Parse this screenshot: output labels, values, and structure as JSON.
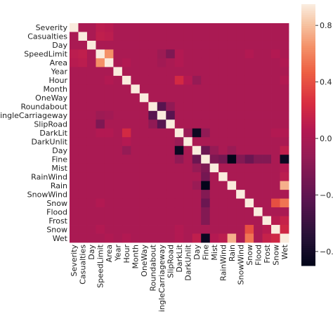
{
  "chart_data": {
    "type": "heatmap",
    "title": "",
    "xlabel": "",
    "ylabel": "",
    "labels": [
      "Severity",
      "Casualties",
      "Day",
      "SpeedLimit",
      "Area",
      "Year",
      "Hour",
      "Month",
      "OneWay",
      "Roundabout",
      "SingleCarriageway",
      "SlipRoad",
      "DarkLit",
      "DarkUnlit",
      "Day",
      "Fine",
      "Mist",
      "RainWind",
      "Rain",
      "SnowWind",
      "Snow",
      "Flood",
      "Frost",
      "Snow",
      "Wet"
    ],
    "colorbar": {
      "min": -0.9,
      "max": 0.95,
      "ticks": [
        -0.8,
        -0.4,
        0.0,
        0.4,
        0.8
      ],
      "tick_labels": [
        "−0.8",
        "−0.4",
        "0.0",
        "0.4",
        "0.8"
      ]
    },
    "base_value": 0.0,
    "diagonal_value": 1.0,
    "highlights": [
      [
        0,
        3,
        0.1
      ],
      [
        0,
        4,
        0.08
      ],
      [
        1,
        3,
        0.12
      ],
      [
        1,
        4,
        0.1
      ],
      [
        3,
        4,
        0.65
      ],
      [
        3,
        11,
        -0.25
      ],
      [
        3,
        10,
        -0.08
      ],
      [
        3,
        12,
        0.05
      ],
      [
        4,
        10,
        -0.05
      ],
      [
        4,
        12,
        0.05
      ],
      [
        4,
        6,
        0.05
      ],
      [
        6,
        12,
        0.22
      ],
      [
        6,
        13,
        0.06
      ],
      [
        6,
        14,
        -0.12
      ],
      [
        9,
        10,
        -0.45
      ],
      [
        9,
        11,
        -0.15
      ],
      [
        10,
        11,
        -0.45
      ],
      [
        12,
        14,
        -0.85
      ],
      [
        12,
        13,
        -0.1
      ],
      [
        12,
        15,
        -0.15
      ],
      [
        14,
        15,
        -0.35
      ],
      [
        14,
        16,
        -0.12
      ],
      [
        14,
        18,
        -0.1
      ],
      [
        14,
        24,
        0.12
      ],
      [
        15,
        18,
        -0.9
      ],
      [
        15,
        24,
        -0.85
      ],
      [
        15,
        16,
        -0.25
      ],
      [
        15,
        17,
        -0.3
      ],
      [
        15,
        19,
        -0.22
      ],
      [
        15,
        20,
        -0.35
      ],
      [
        15,
        21,
        -0.22
      ],
      [
        15,
        22,
        -0.22
      ],
      [
        18,
        24,
        0.75
      ],
      [
        20,
        24,
        0.55
      ],
      [
        22,
        24,
        0.15
      ],
      [
        17,
        24,
        0.1
      ],
      [
        16,
        24,
        0.06
      ],
      [
        3,
        20,
        0.05
      ],
      [
        3,
        23,
        0.05
      ],
      [
        12,
        24,
        0.05
      ],
      [
        6,
        24,
        0.05
      ],
      [
        4,
        24,
        0.04
      ],
      [
        20,
        23,
        0.4
      ],
      [
        22,
        23,
        0.08
      ],
      [
        23,
        24,
        0.2
      ],
      [
        12,
        23,
        0.05
      ]
    ]
  }
}
